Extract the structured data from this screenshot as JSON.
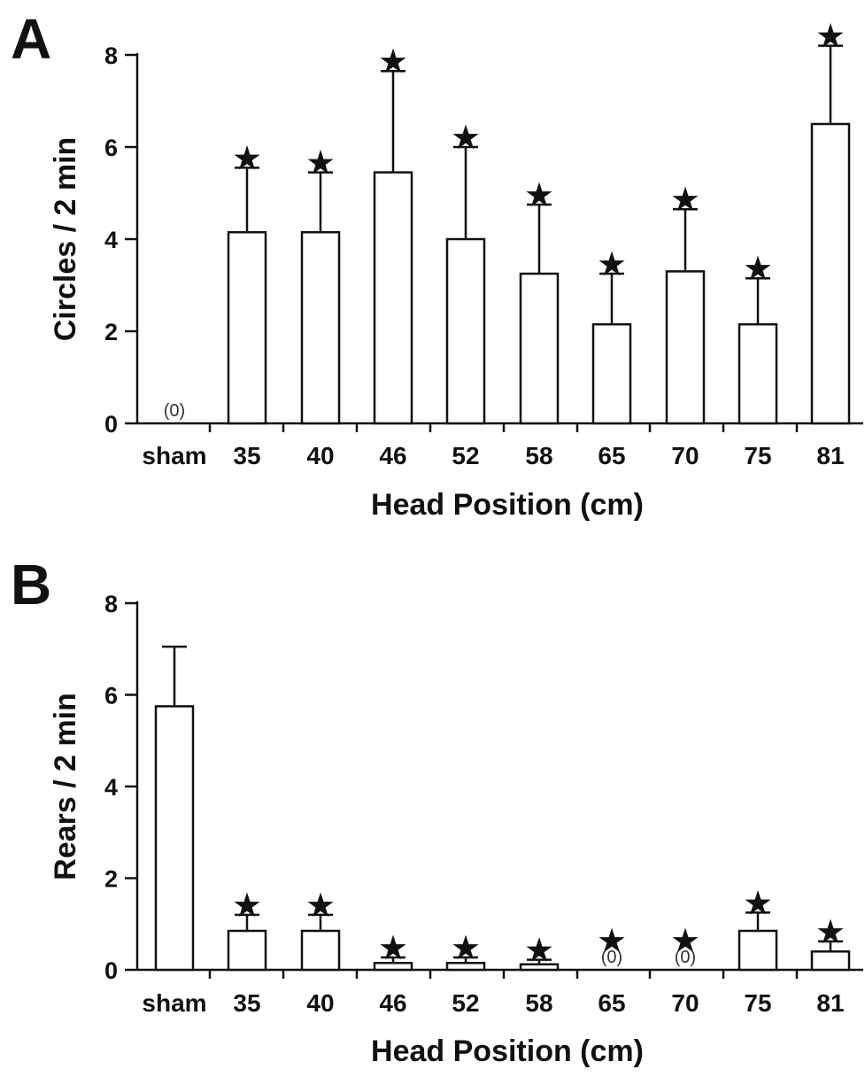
{
  "chart_data": [
    {
      "type": "bar",
      "panel": "A",
      "xlabel": "Head Position (cm)",
      "ylabel": "Circles / 2 min",
      "ylim": [
        0,
        8
      ],
      "yticks": [
        "0",
        "2",
        "4",
        "6",
        "8"
      ],
      "categories": [
        "sham",
        "35",
        "40",
        "46",
        "52",
        "58",
        "65",
        "70",
        "75",
        "81"
      ],
      "values": [
        0,
        4.15,
        4.15,
        5.45,
        4.0,
        3.25,
        2.15,
        3.3,
        2.15,
        6.5
      ],
      "error": [
        0,
        1.4,
        1.3,
        2.2,
        2.0,
        1.5,
        1.1,
        1.35,
        1.0,
        1.7
      ],
      "significant": [
        false,
        true,
        true,
        true,
        true,
        true,
        true,
        true,
        true,
        true
      ],
      "zero_labels": [
        "(0)",
        "",
        "",
        "",
        "",
        "",
        "",
        "",
        "",
        ""
      ],
      "star_symbol": "★",
      "grid": false
    },
    {
      "type": "bar",
      "panel": "B",
      "xlabel": "Head Position (cm)",
      "ylabel": "Rears / 2 min",
      "ylim": [
        0,
        8
      ],
      "yticks": [
        "0",
        "2",
        "4",
        "6",
        "8"
      ],
      "categories": [
        "sham",
        "35",
        "40",
        "46",
        "52",
        "58",
        "65",
        "70",
        "75",
        "81"
      ],
      "values": [
        5.75,
        0.85,
        0.85,
        0.15,
        0.15,
        0.12,
        0,
        0,
        0.85,
        0.4
      ],
      "error": [
        1.3,
        0.35,
        0.35,
        0.12,
        0.12,
        0.1,
        0,
        0,
        0.4,
        0.22
      ],
      "significant": [
        false,
        true,
        true,
        true,
        true,
        true,
        true,
        true,
        true,
        true
      ],
      "zero_labels": [
        "",
        "",
        "",
        "",
        "",
        "",
        "(0)",
        "(0)",
        "",
        ""
      ],
      "star_symbol": "★",
      "grid": false
    }
  ]
}
